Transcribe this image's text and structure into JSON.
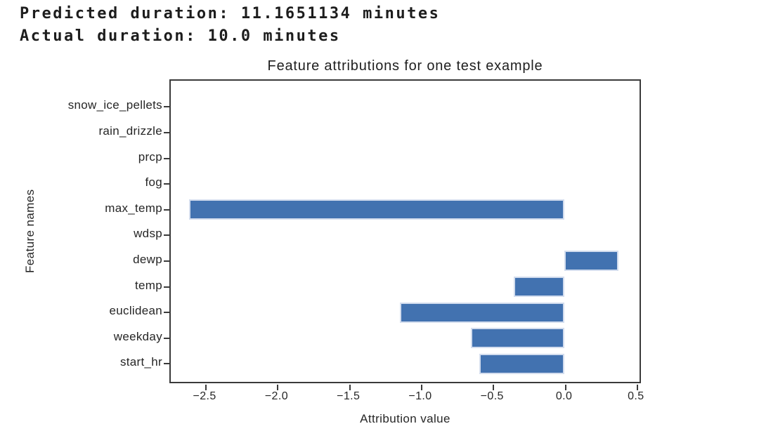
{
  "output_text": {
    "line1": "Predicted duration: 11.1651134 minutes",
    "line2": "Actual duration: 10.0 minutes"
  },
  "chart_data": {
    "type": "bar",
    "orientation": "horizontal",
    "title": "Feature attributions for one test example",
    "xlabel": "Attribution value",
    "ylabel": "Feature names",
    "categories": [
      "snow_ice_pellets",
      "rain_drizzle",
      "prcp",
      "fog",
      "max_temp",
      "wdsp",
      "dewp",
      "temp",
      "euclidean",
      "weekday",
      "start_hr"
    ],
    "values": [
      0,
      0,
      0,
      0,
      -2.61,
      0,
      0.38,
      -0.35,
      -1.14,
      -0.65,
      -0.59
    ],
    "xlim": [
      -2.745,
      0.535
    ],
    "x_ticks": [
      -2.5,
      -2.0,
      -1.5,
      -1.0,
      -0.5,
      0.0,
      0.5
    ],
    "x_tick_labels": [
      "−2.5",
      "−2.0",
      "−1.5",
      "−1.0",
      "−0.5",
      "0.0",
      "0.5"
    ],
    "grid": false,
    "legend": null,
    "colors": {
      "bar_fill": "#4272b0",
      "bar_edge": "#d3ddee",
      "spine": "#3a3a3a",
      "text": "#262626"
    }
  }
}
